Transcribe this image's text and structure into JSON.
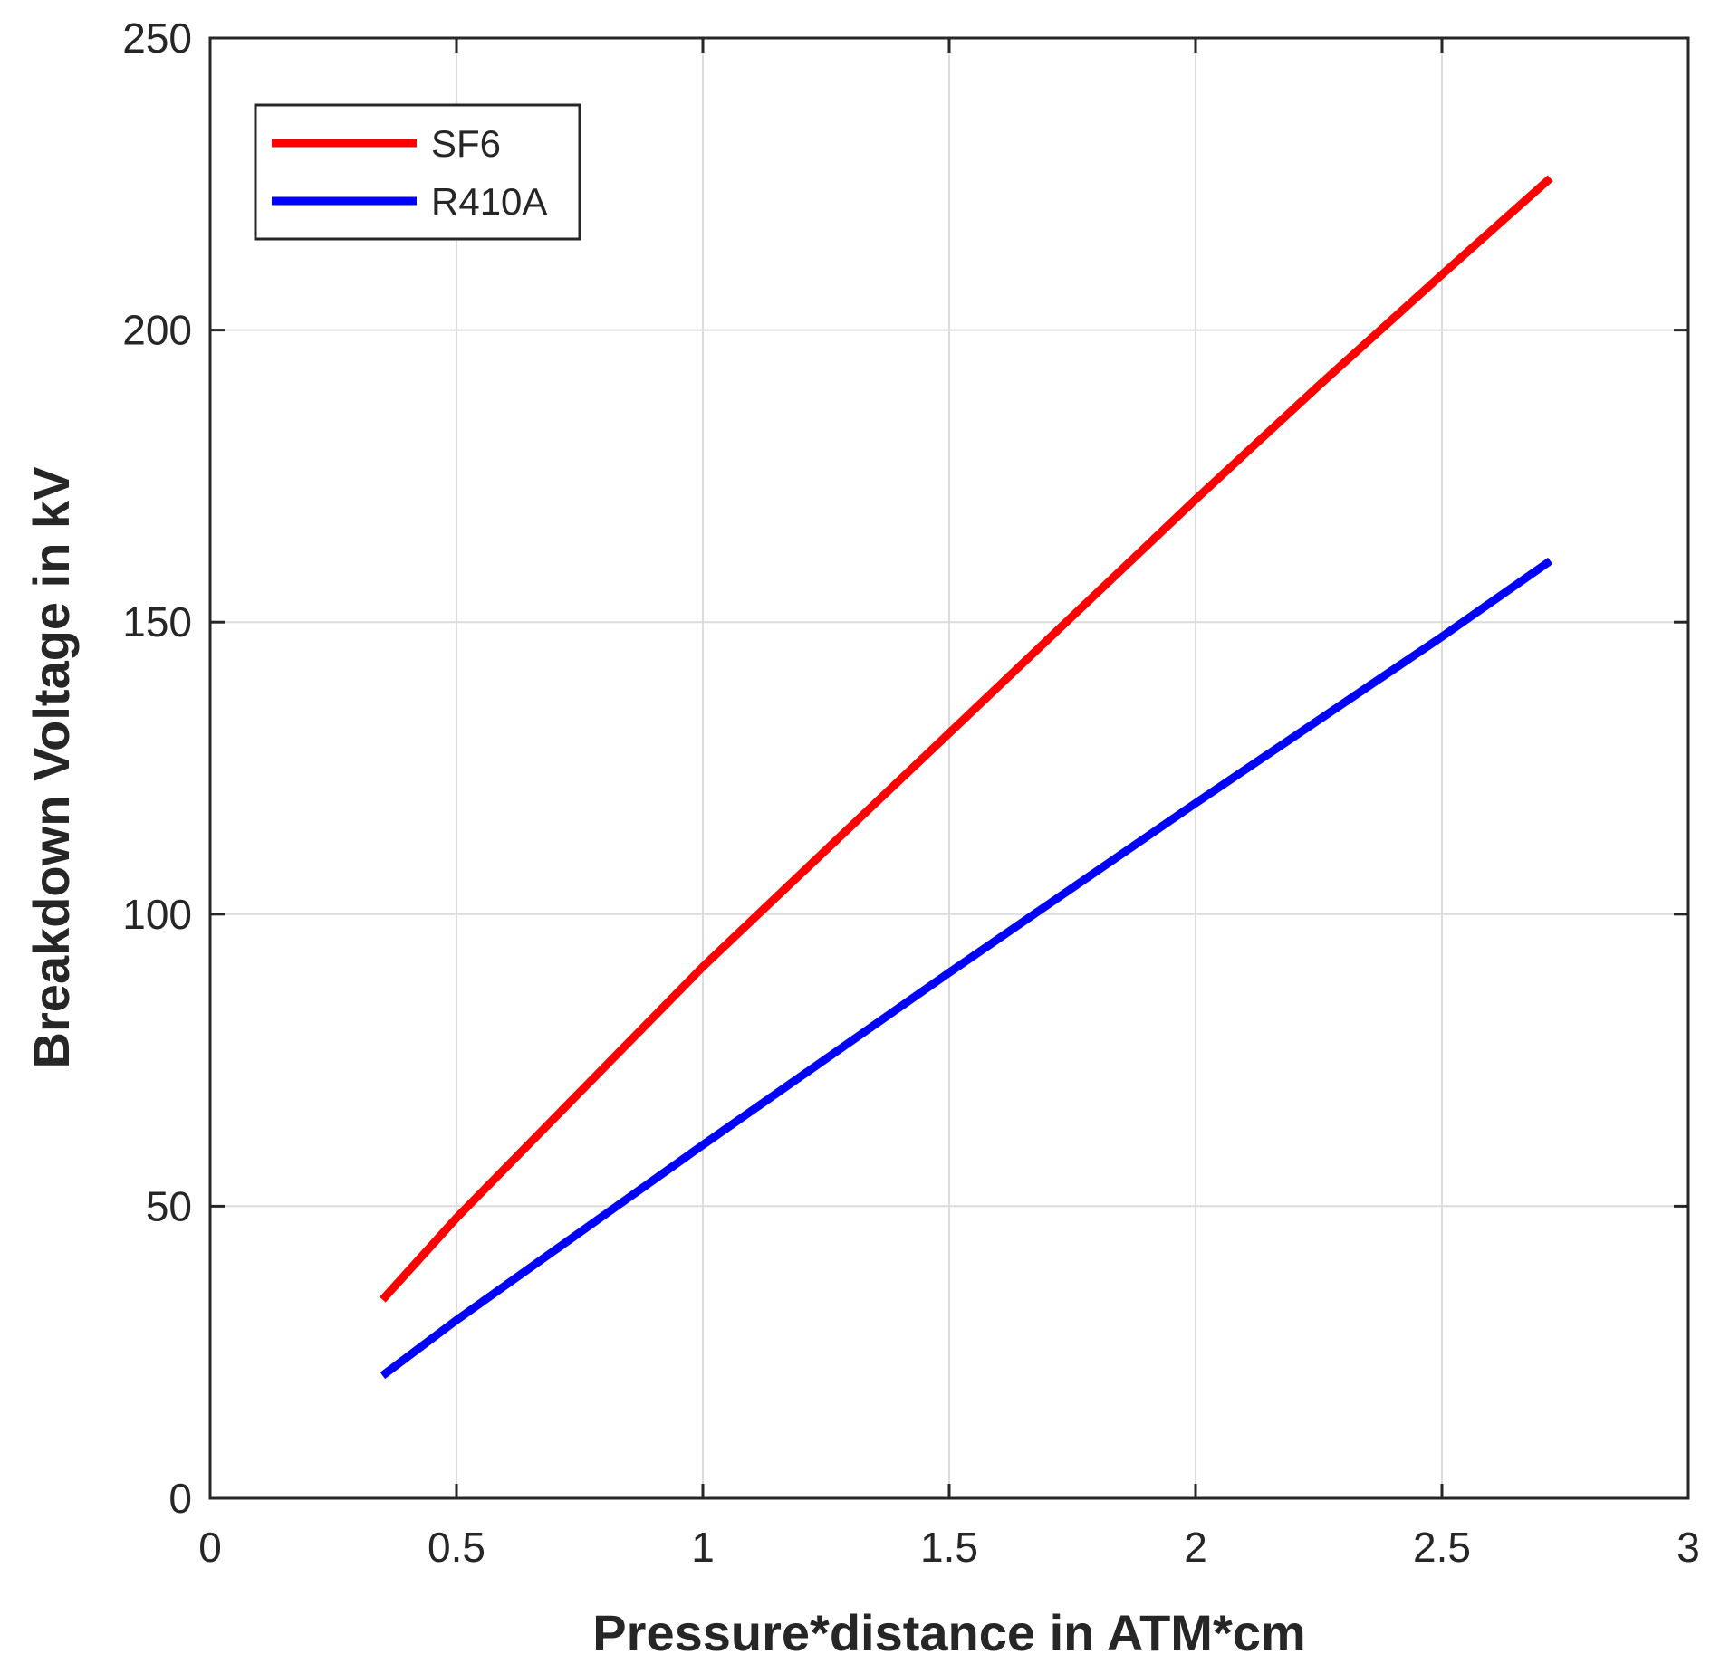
{
  "chart_data": {
    "type": "line",
    "title": "",
    "xlabel": "Pressure*distance in ATM*cm",
    "ylabel": "Breakdown Voltage in kV",
    "xlim": [
      0,
      3
    ],
    "ylim": [
      0,
      250
    ],
    "xticks": [
      0,
      0.5,
      1,
      1.5,
      2,
      2.5,
      3
    ],
    "yticks": [
      0,
      50,
      100,
      150,
      200,
      250
    ],
    "xtick_labels": [
      "0",
      "0.5",
      "1",
      "1.5",
      "2",
      "2.5",
      "3"
    ],
    "ytick_labels": [
      "0",
      "50",
      "100",
      "150",
      "200",
      "250"
    ],
    "grid": true,
    "legend_position": "top-left",
    "series": [
      {
        "name": "SF6",
        "color": "#ff0000",
        "x": [
          0.35,
          0.5,
          0.75,
          1.0,
          1.25,
          1.5,
          1.75,
          2.0,
          2.25,
          2.5,
          2.72
        ],
        "y": [
          34,
          48,
          69.5,
          91,
          111,
          131,
          151,
          171,
          190.5,
          209.5,
          226
        ]
      },
      {
        "name": "R410A",
        "color": "#0000ff",
        "x": [
          0.35,
          0.5,
          1.0,
          1.5,
          2.0,
          2.5,
          2.72
        ],
        "y": [
          21,
          30.5,
          60.5,
          90,
          119,
          147.5,
          160.5
        ]
      }
    ]
  }
}
